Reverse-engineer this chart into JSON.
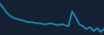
{
  "values": [
    40,
    35,
    30,
    27,
    25,
    24,
    23,
    22,
    21,
    21,
    20,
    20,
    19,
    19,
    20,
    19,
    18,
    19,
    18,
    17,
    32,
    26,
    19,
    17,
    14,
    16,
    12,
    15,
    11,
    15
  ],
  "line_color": "#2196c4",
  "bg_color": "#152033",
  "ylim": [
    8,
    44
  ],
  "linewidth": 1.2
}
